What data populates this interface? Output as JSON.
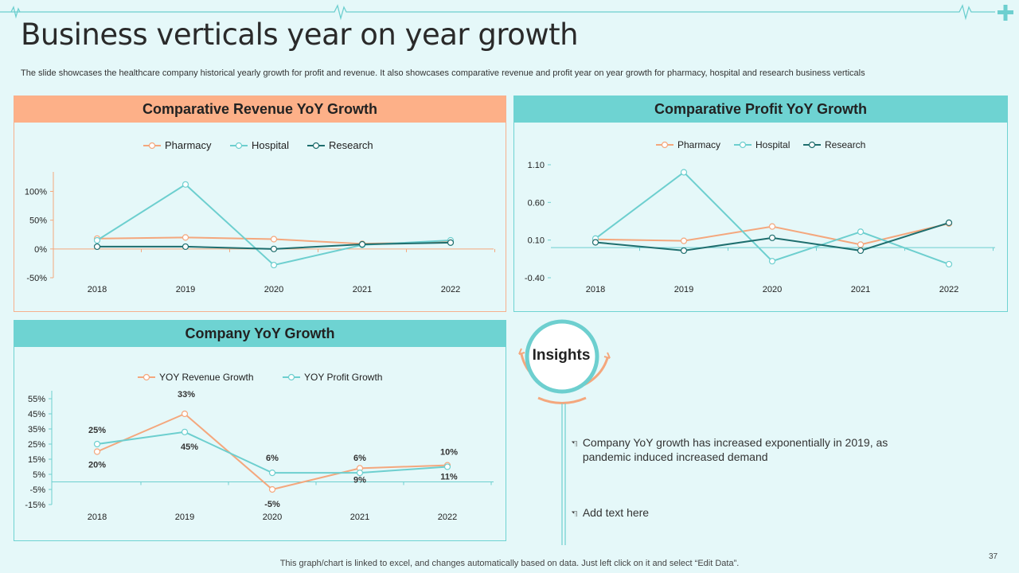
{
  "header": {
    "title": "Business verticals year on year growth",
    "subtitle": "The slide showcases the healthcare company historical yearly growth for profit and revenue. It also showcases comparative revenue and profit year on year growth for pharmacy, hospital and research business verticals"
  },
  "colors": {
    "pharmacy": "#f4a77d",
    "hospital": "#6dcfcf",
    "research": "#1e6e6e",
    "revenue_head": "#fdb088",
    "teal_head": "#6ed3d2"
  },
  "chart_data": [
    {
      "type": "line",
      "title": "Comparative Revenue YoY Growth",
      "categories": [
        "2018",
        "2019",
        "2020",
        "2021",
        "2022"
      ],
      "series": [
        {
          "name": "Pharmacy",
          "values": [
            18,
            20,
            17,
            9,
            12
          ]
        },
        {
          "name": "Hospital",
          "values": [
            15,
            112,
            -28,
            7,
            15
          ]
        },
        {
          "name": "Research",
          "values": [
            4,
            4,
            0,
            8,
            11
          ]
        }
      ],
      "ylim": [
        -50,
        120
      ],
      "yticks": [
        -50,
        0,
        50,
        100
      ],
      "yticklabels": [
        "-50%",
        "0%",
        "50%",
        "100%"
      ],
      "legend": "top"
    },
    {
      "type": "line",
      "title": "Comparative Profit YoY Growth",
      "categories": [
        "2018",
        "2019",
        "2020",
        "2021",
        "2022"
      ],
      "series": [
        {
          "name": "Pharmacy",
          "values": [
            0.11,
            0.09,
            0.28,
            0.04,
            0.32
          ]
        },
        {
          "name": "Hospital",
          "values": [
            0.12,
            1.0,
            -0.18,
            0.21,
            -0.22
          ]
        },
        {
          "name": "Research",
          "values": [
            0.07,
            -0.04,
            0.13,
            -0.04,
            0.33
          ]
        }
      ],
      "ylim": [
        -0.4,
        1.1
      ],
      "yticks": [
        -0.4,
        0.1,
        0.6,
        1.1
      ],
      "yticklabels": [
        "-0.40",
        "0.10",
        "0.60",
        "1.10"
      ],
      "legend": "top"
    },
    {
      "type": "line",
      "title": "Company YoY Growth",
      "categories": [
        "2018",
        "2019",
        "2020",
        "2021",
        "2022"
      ],
      "series": [
        {
          "name": "YOY Revenue Growth",
          "values": [
            20,
            45,
            -5,
            9,
            11
          ],
          "labels": [
            "20%",
            "45%",
            "-5%",
            "9%",
            "11%"
          ]
        },
        {
          "name": "YOY Profit Growth",
          "values": [
            25,
            33,
            6,
            6,
            10
          ],
          "labels": [
            "25%",
            "33%",
            "6%",
            "6%",
            "10%"
          ]
        }
      ],
      "ylim": [
        -15,
        55
      ],
      "yticks": [
        -15,
        -5,
        5,
        15,
        25,
        35,
        45,
        55
      ],
      "yticklabels": [
        "-15%",
        "-5%",
        "5%",
        "15%",
        "25%",
        "35%",
        "45%",
        "55%"
      ],
      "legend": "top"
    }
  ],
  "insights": {
    "title": "Insights",
    "bullets": [
      "Company YoY growth has increased exponentially in 2019, as pandemic induced increased demand",
      "Add text here"
    ]
  },
  "footer": {
    "note": "This graph/chart is linked to excel, and changes automatically based on data. Just left click on it and select “Edit Data”.",
    "page": "37"
  }
}
